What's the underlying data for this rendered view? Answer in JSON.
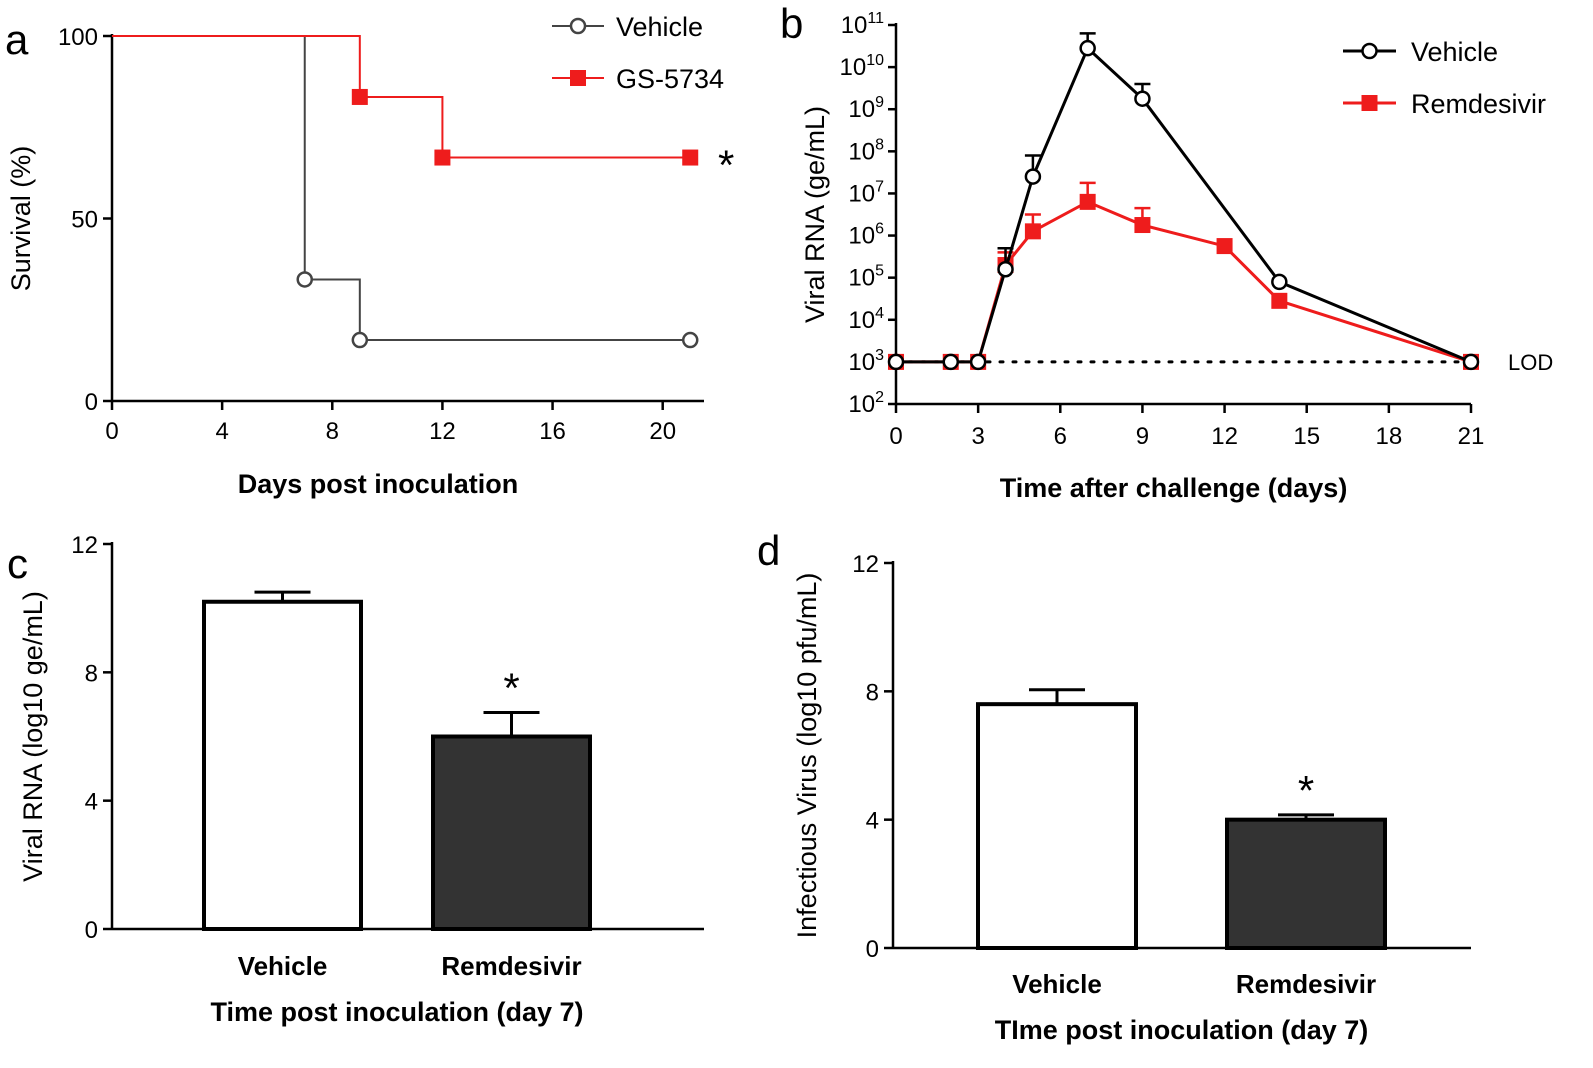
{
  "chart_data": [
    {
      "panel": "a",
      "type": "line",
      "step": true,
      "xlabel": "Days post inoculation",
      "ylabel": "Survival (%)",
      "xlim": [
        0,
        21.5
      ],
      "ylim": [
        0,
        100
      ],
      "xticks": [
        0,
        4,
        8,
        12,
        16,
        20
      ],
      "yticks": [
        0,
        50,
        100
      ],
      "legend": "top-right",
      "annotation": "*",
      "series": [
        {
          "name": "Vehicle",
          "color": "#444444",
          "marker": "open-circle",
          "x": [
            0,
            7,
            9,
            21
          ],
          "y": [
            100,
            33.3,
            16.7,
            16.7
          ],
          "marker_x": [
            7,
            9,
            21
          ],
          "marker_y": [
            33.3,
            16.7,
            16.7
          ]
        },
        {
          "name": "GS-5734",
          "color": "#ee1c1c",
          "marker": "filled-square",
          "x": [
            0,
            9,
            12,
            21
          ],
          "y": [
            100,
            83.3,
            66.7,
            66.7
          ],
          "marker_x": [
            9,
            12,
            21
          ],
          "marker_y": [
            83.3,
            66.7,
            66.7
          ]
        }
      ]
    },
    {
      "panel": "b",
      "type": "line",
      "xlabel": "Time after challenge (days)",
      "ylabel": "Viral RNA (ge/mL)",
      "yscale": "log",
      "xlim": [
        0,
        21
      ],
      "ylim_exp": [
        2,
        11
      ],
      "xticks": [
        0,
        3,
        6,
        9,
        12,
        15,
        18,
        21
      ],
      "ytick_exponents": [
        2,
        3,
        4,
        5,
        6,
        7,
        8,
        9,
        10,
        11
      ],
      "ytick_base": "10",
      "legend": "top-right",
      "reference_line": {
        "label": "LOD",
        "log10_value": 3
      },
      "series": [
        {
          "name": "Vehicle",
          "color": "#000000",
          "marker": "open-circle",
          "x": [
            0,
            2,
            3,
            4,
            5,
            7,
            9,
            14,
            21
          ],
          "log10_y": [
            3,
            3,
            3,
            5.2,
            7.4,
            10.45,
            9.25,
            4.9,
            3
          ],
          "log10_err_upper": [
            3,
            3,
            3,
            5.7,
            7.9,
            10.8,
            9.6,
            4.9,
            3
          ]
        },
        {
          "name": "Remdesivir",
          "color": "#ee1c1c",
          "marker": "filled-square",
          "x": [
            0,
            2,
            3,
            4,
            5,
            7,
            9,
            12,
            14,
            21
          ],
          "log10_y": [
            3,
            3,
            3,
            5.3,
            6.1,
            6.8,
            6.25,
            5.75,
            4.45,
            3
          ],
          "log10_err_upper": [
            3,
            3,
            3,
            5.6,
            6.5,
            7.25,
            6.65,
            5.75,
            4.45,
            3
          ]
        }
      ]
    },
    {
      "panel": "c",
      "type": "bar",
      "categories": [
        "Vehicle",
        "Remdesivir"
      ],
      "values": [
        10.2,
        6.0
      ],
      "err_upper": [
        10.5,
        6.75
      ],
      "fills": [
        "#ffffff",
        "#333333"
      ],
      "xlabel": "Time post inoculation (day 7)",
      "ylabel": "Viral RNA (log10 ge/mL)",
      "ylim": [
        0,
        12
      ],
      "yticks": [
        0,
        4,
        8,
        12
      ],
      "annotation": "*"
    },
    {
      "panel": "d",
      "type": "bar",
      "categories": [
        "Vehicle",
        "Remdesivir"
      ],
      "values": [
        7.6,
        4.0
      ],
      "err_upper": [
        8.05,
        4.15
      ],
      "fills": [
        "#ffffff",
        "#333333"
      ],
      "xlabel": "TIme post inoculation (day 7)",
      "ylabel": "Infectious  Virus (log10 pfu/mL)",
      "ylim": [
        0,
        12
      ],
      "yticks": [
        0,
        4,
        8,
        12
      ],
      "annotation": "*"
    }
  ]
}
